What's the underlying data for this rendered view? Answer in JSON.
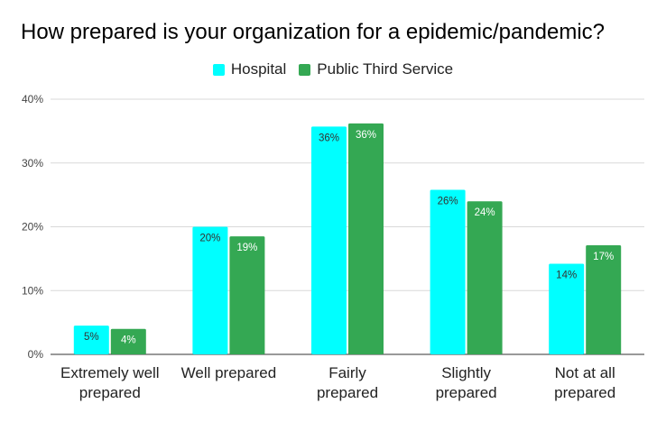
{
  "chart_data": {
    "type": "bar",
    "title": "How prepared is your organization for a epidemic/pandemic?",
    "xlabel": "",
    "ylabel": "",
    "categories": [
      [
        "Extremely well",
        "prepared"
      ],
      [
        "Well prepared"
      ],
      [
        "Fairly",
        "prepared"
      ],
      [
        "Slightly",
        "prepared"
      ],
      [
        "Not at all",
        "prepared"
      ]
    ],
    "series": [
      {
        "name": "Hospital",
        "color": "#00ffff",
        "values": [
          4.5,
          20,
          35.7,
          25.8,
          14.2
        ],
        "labels": [
          "5%",
          "20%",
          "36%",
          "26%",
          "14%"
        ]
      },
      {
        "name": "Public Third Service",
        "color": "#34a853",
        "values": [
          4,
          18.5,
          36.2,
          24,
          17.1
        ],
        "labels": [
          "4%",
          "19%",
          "36%",
          "24%",
          "17%"
        ]
      }
    ],
    "ylim": [
      0,
      40
    ],
    "y_ticks": [
      0,
      10,
      20,
      30,
      40
    ],
    "y_tick_labels": [
      "0%",
      "10%",
      "20%",
      "30%",
      "40%"
    ],
    "grid": true,
    "legend_position": "top-center"
  }
}
